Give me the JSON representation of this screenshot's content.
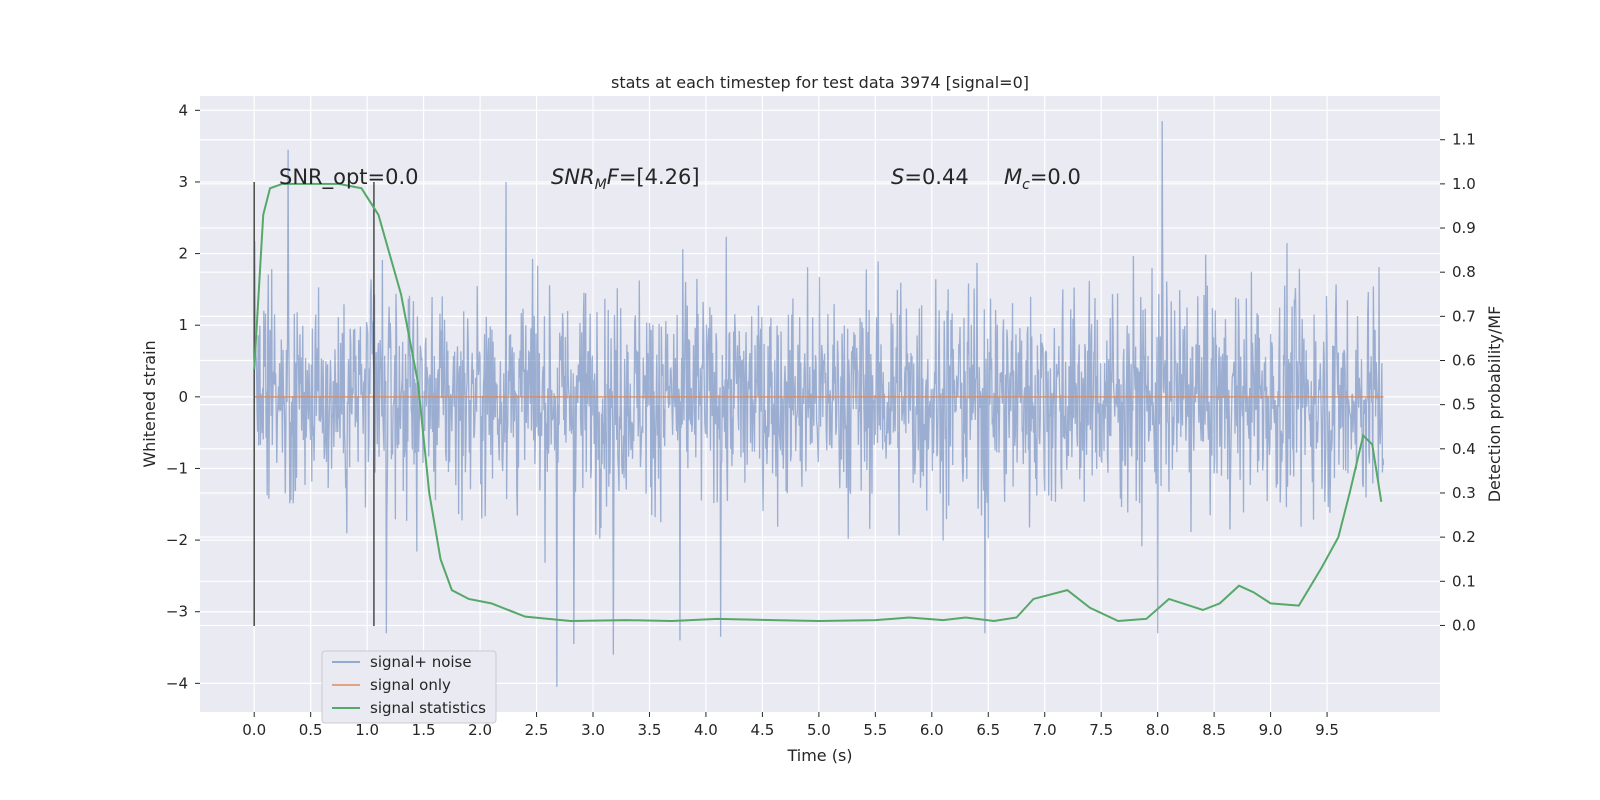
{
  "chart_data": {
    "type": "line",
    "title": "stats at each timestep for test data 3974 [signal=0]",
    "xlabel": "Time (s)",
    "ylabel": "Whitened strain",
    "y2label": "Detection probability/MF",
    "xlim": [
      -0.48,
      10.5
    ],
    "ylim": [
      -4.4,
      4.2
    ],
    "y2lim": [
      -0.196,
      1.199
    ],
    "x_ticks": [
      0.0,
      0.5,
      1.0,
      1.5,
      2.0,
      2.5,
      3.0,
      3.5,
      4.0,
      4.5,
      5.0,
      5.5,
      6.0,
      6.5,
      7.0,
      7.5,
      8.0,
      8.5,
      9.0,
      9.5
    ],
    "x_tick_labels": [
      "0.0",
      "0.5",
      "1.0",
      "1.5",
      "2.0",
      "2.5",
      "3.0",
      "3.5",
      "4.0",
      "4.5",
      "5.0",
      "5.5",
      "6.0",
      "6.5",
      "7.0",
      "7.5",
      "8.0",
      "8.5",
      "9.0",
      "9.5"
    ],
    "y_ticks": [
      -4,
      -3,
      -2,
      -1,
      0,
      1,
      2,
      3,
      4
    ],
    "y_tick_labels": [
      "−4",
      "−3",
      "−2",
      "−1",
      "0",
      "1",
      "2",
      "3",
      "4"
    ],
    "y2_ticks": [
      0.0,
      0.1,
      0.2,
      0.3,
      0.4,
      0.5,
      0.6,
      0.7,
      0.8,
      0.9,
      1.0,
      1.1
    ],
    "y2_tick_labels": [
      "0.0",
      "0.1",
      "0.2",
      "0.3",
      "0.4",
      "0.5",
      "0.6",
      "0.7",
      "0.8",
      "0.9",
      "1.0",
      "1.1"
    ],
    "grid": true,
    "legend_position": "lower-left",
    "series": [
      {
        "name": "signal+ noise",
        "color": "#4c72b0",
        "axis": "left",
        "x_range": [
          0.0,
          10.0
        ],
        "typical_range": [
          -1.4,
          1.8
        ],
        "notable_peaks": [
          {
            "x": 0.3,
            "y": 3.45
          },
          {
            "x": 2.23,
            "y": 3.0
          },
          {
            "x": 8.04,
            "y": 3.85
          },
          {
            "x": 2.68,
            "y": -4.05
          },
          {
            "x": 2.83,
            "y": -3.45
          },
          {
            "x": 3.18,
            "y": -3.6
          },
          {
            "x": 3.77,
            "y": -3.4
          },
          {
            "x": 4.13,
            "y": -3.35
          },
          {
            "x": 1.17,
            "y": -3.3
          },
          {
            "x": 6.47,
            "y": -3.3
          },
          {
            "x": 8.0,
            "y": -3.3
          }
        ]
      },
      {
        "name": "signal only",
        "color": "#dd8452",
        "axis": "left",
        "x": [
          0.0,
          10.0
        ],
        "y": [
          0.0,
          0.0
        ]
      },
      {
        "name": "signal statistics",
        "color": "#55a868",
        "axis": "right",
        "x": [
          0.0,
          0.08,
          0.14,
          0.25,
          0.5,
          0.75,
          0.95,
          1.1,
          1.3,
          1.45,
          1.55,
          1.65,
          1.75,
          1.9,
          2.1,
          2.4,
          2.8,
          3.3,
          3.7,
          4.1,
          4.6,
          5.0,
          5.5,
          5.8,
          6.1,
          6.3,
          6.55,
          6.75,
          6.9,
          7.2,
          7.4,
          7.65,
          7.9,
          8.1,
          8.4,
          8.55,
          8.72,
          8.85,
          9.0,
          9.25,
          9.45,
          9.6,
          9.7,
          9.82,
          9.9,
          9.98
        ],
        "y": [
          0.58,
          0.93,
          0.99,
          1.0,
          1.0,
          1.0,
          0.99,
          0.93,
          0.75,
          0.55,
          0.3,
          0.15,
          0.08,
          0.06,
          0.05,
          0.02,
          0.01,
          0.012,
          0.01,
          0.015,
          0.012,
          0.01,
          0.012,
          0.018,
          0.012,
          0.018,
          0.01,
          0.018,
          0.06,
          0.08,
          0.04,
          0.01,
          0.015,
          0.06,
          0.035,
          0.05,
          0.09,
          0.075,
          0.05,
          0.045,
          0.13,
          0.2,
          0.3,
          0.43,
          0.41,
          0.28
        ]
      }
    ],
    "vertical_lines": [
      {
        "x": 0.0,
        "y_from": -3.2,
        "y_to": 3.0
      },
      {
        "x": 1.06,
        "y_from": -3.2,
        "y_to": 3.0
      }
    ],
    "annotations": {
      "snr_opt": "SNR_opt=0.0",
      "snr_mf_sym": "SNR",
      "snr_mf_sub": "M",
      "snr_mf_it": "F",
      "snr_mf_val": "=[4.26]",
      "s_sym": "S",
      "s_val": "=0.44",
      "mc_sym": "M",
      "mc_sub": "c",
      "mc_val": "=0.0"
    }
  }
}
